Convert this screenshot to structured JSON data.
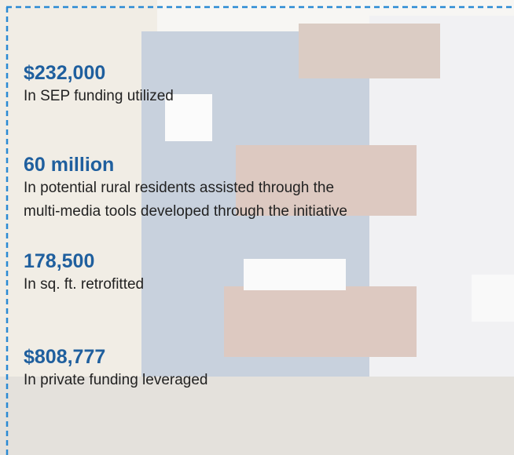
{
  "stats": [
    {
      "figure": "$232,000",
      "description": [
        "In SEP funding utilized"
      ]
    },
    {
      "figure": "60 million",
      "description": [
        "In potential rural residents assisted through the",
        "multi-media tools developed through the initiative"
      ]
    },
    {
      "figure": "178,500",
      "description": [
        "In sq. ft. retrofitted"
      ]
    },
    {
      "figure": "$808,777",
      "description": [
        "In private funding leveraged"
      ]
    }
  ]
}
